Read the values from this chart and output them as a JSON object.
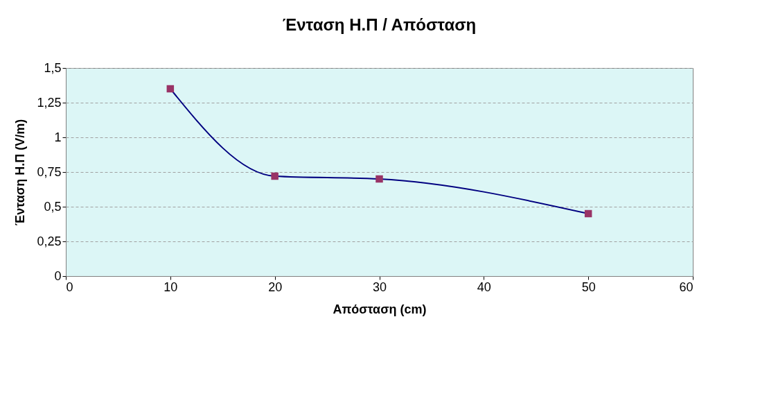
{
  "chart_data": {
    "type": "line",
    "title": "Ένταση Η.Π / Απόσταση",
    "xlabel": "Απόσταση (cm)",
    "ylabel": "Ένταση Η.Π (V/m)",
    "x": [
      10,
      20,
      30,
      50
    ],
    "series": [
      {
        "color": "#000080",
        "colors": [
          "#993366",
          "#993366",
          "#993366",
          "#993366"
        ],
        "values": [
          1.35,
          0.72,
          0.7,
          0.45
        ]
      }
    ],
    "xlim": [
      0,
      60
    ],
    "xticks": [
      0,
      10,
      20,
      30,
      40,
      50,
      60
    ],
    "ylim": [
      0,
      1.5
    ],
    "yticks": [
      {
        "value": 0,
        "label": "0"
      },
      {
        "value": 0.25,
        "label": "0,25"
      },
      {
        "value": 0.5,
        "label": "0,5"
      },
      {
        "value": 0.75,
        "label": "0,75"
      },
      {
        "value": 1,
        "label": "1"
      },
      {
        "value": 1.25,
        "label": "1,25"
      },
      {
        "value": 1.5,
        "label": "1,5"
      }
    ],
    "grid": "y",
    "marker": "square",
    "line_style": "solid"
  }
}
